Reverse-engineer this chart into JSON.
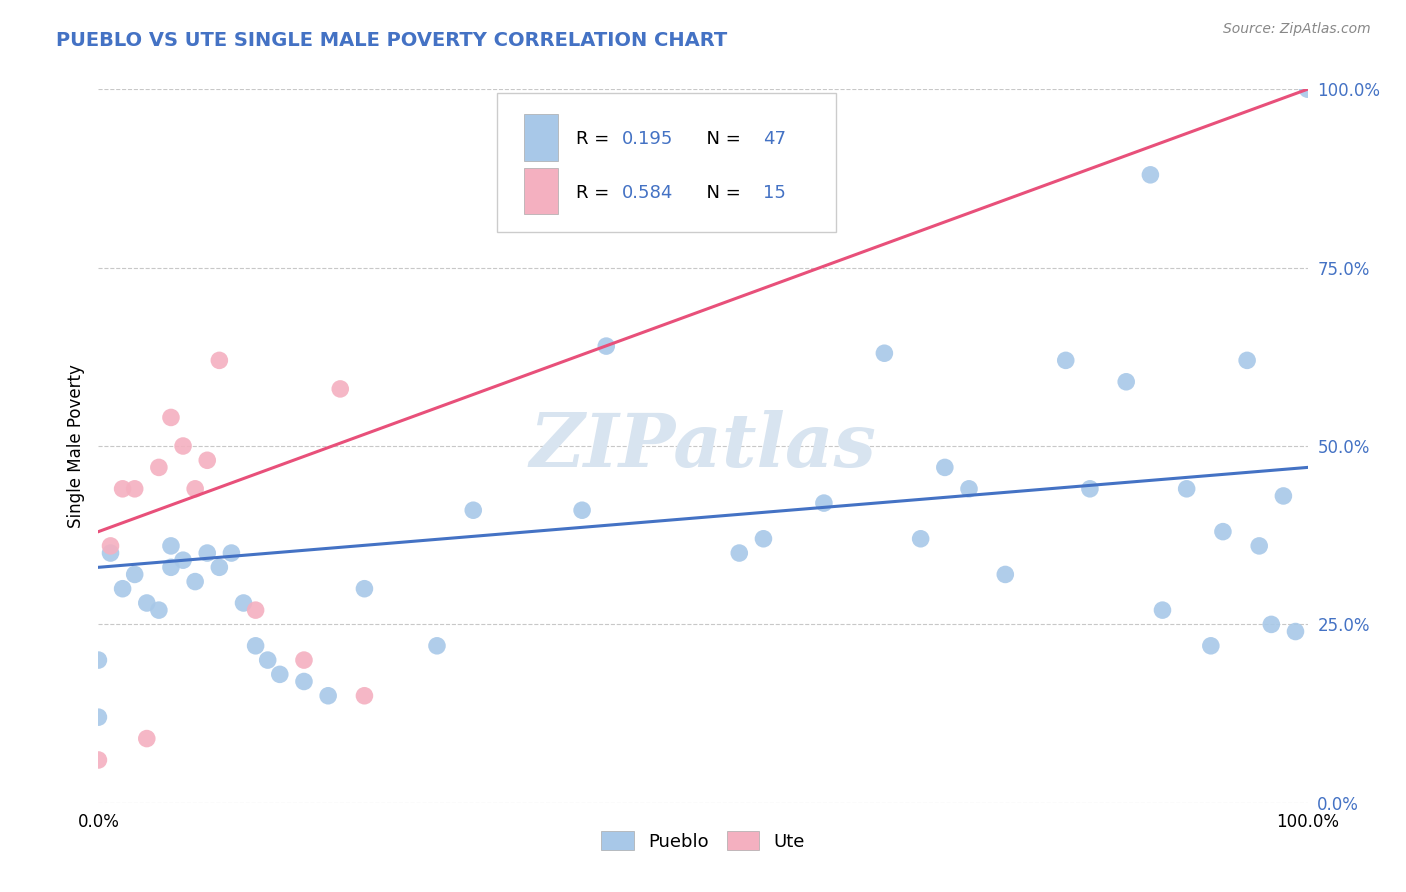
{
  "title": "PUEBLO VS UTE SINGLE MALE POVERTY CORRELATION CHART",
  "source": "Source: ZipAtlas.com",
  "ylabel": "Single Male Poverty",
  "xlim": [
    0,
    1
  ],
  "ylim": [
    0,
    1
  ],
  "ytick_values": [
    0.0,
    0.25,
    0.5,
    0.75,
    1.0
  ],
  "ytick_labels": [
    "0.0%",
    "25.0%",
    "50.0%",
    "75.0%",
    "100.0%"
  ],
  "pueblo_R": "0.195",
  "pueblo_N": "47",
  "ute_R": "0.584",
  "ute_N": "15",
  "pueblo_color": "#A8C8E8",
  "ute_color": "#F4B0C0",
  "pueblo_line_color": "#4472C4",
  "ute_line_color": "#E8507A",
  "legend_label_pueblo": "Pueblo",
  "legend_label_ute": "Ute",
  "title_color": "#4472C4",
  "stat_color": "#4472C4",
  "watermark_color": "#D8E4F0",
  "background_color": "#FFFFFF",
  "grid_color": "#C8C8C8",
  "pueblo_x": [
    0.0,
    0.0,
    0.01,
    0.02,
    0.03,
    0.04,
    0.05,
    0.06,
    0.06,
    0.07,
    0.08,
    0.09,
    0.1,
    0.11,
    0.12,
    0.13,
    0.14,
    0.15,
    0.17,
    0.19,
    0.22,
    0.28,
    0.31,
    0.4,
    0.42,
    0.53,
    0.55,
    0.6,
    0.65,
    0.68,
    0.7,
    0.72,
    0.75,
    0.8,
    0.82,
    0.85,
    0.87,
    0.88,
    0.9,
    0.92,
    0.93,
    0.95,
    0.96,
    0.97,
    0.98,
    0.99,
    1.0
  ],
  "pueblo_y": [
    0.2,
    0.12,
    0.35,
    0.3,
    0.32,
    0.28,
    0.27,
    0.36,
    0.33,
    0.34,
    0.31,
    0.35,
    0.33,
    0.35,
    0.28,
    0.22,
    0.2,
    0.18,
    0.17,
    0.15,
    0.3,
    0.22,
    0.41,
    0.41,
    0.64,
    0.35,
    0.37,
    0.42,
    0.63,
    0.37,
    0.47,
    0.44,
    0.32,
    0.62,
    0.44,
    0.59,
    0.88,
    0.27,
    0.44,
    0.22,
    0.38,
    0.62,
    0.36,
    0.25,
    0.43,
    0.24,
    1.0
  ],
  "ute_x": [
    0.0,
    0.01,
    0.02,
    0.03,
    0.04,
    0.05,
    0.06,
    0.07,
    0.08,
    0.09,
    0.1,
    0.13,
    0.17,
    0.2,
    0.22
  ],
  "ute_y": [
    0.06,
    0.36,
    0.44,
    0.44,
    0.09,
    0.47,
    0.54,
    0.5,
    0.44,
    0.48,
    0.62,
    0.27,
    0.2,
    0.58,
    0.15
  ],
  "pueblo_line_x": [
    0.0,
    1.0
  ],
  "pueblo_line_y": [
    0.33,
    0.47
  ],
  "ute_line_x": [
    0.0,
    1.0
  ],
  "ute_line_y": [
    0.38,
    1.0
  ]
}
